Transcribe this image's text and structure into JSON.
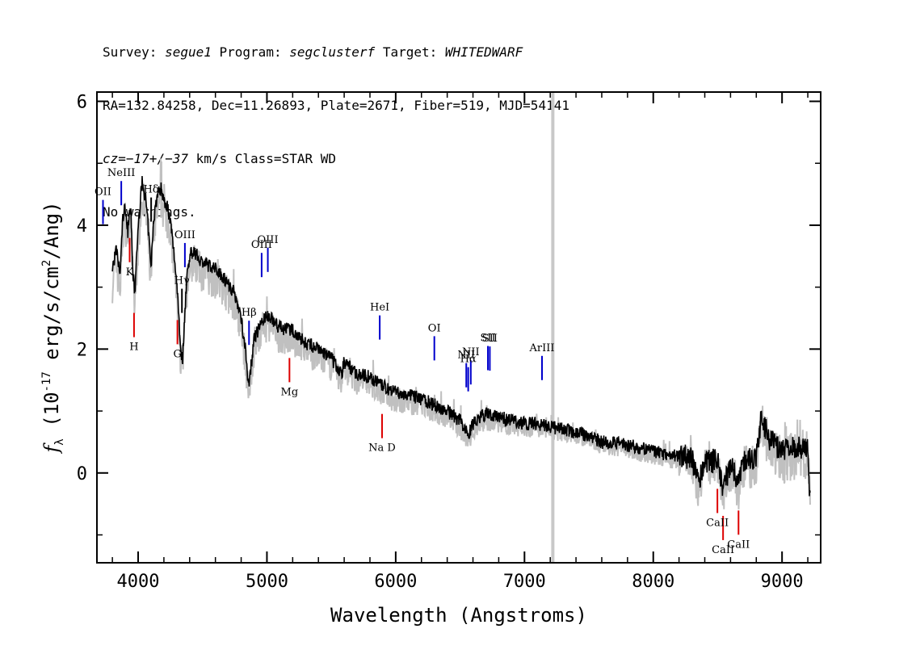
{
  "header": {
    "survey_label": "Survey:",
    "survey_value": "segue1",
    "program_label": "Program:",
    "program_value": "segclusterf",
    "target_label": "Target:",
    "target_value": "WHITEDWARF",
    "line2": "RA=132.84258, Dec=11.26893, Plate=2671, Fiber=519, MJD=54141",
    "cz_label": "cz=",
    "cz_value": "−17+/−37",
    "cz_rest": " km/s Class=STAR WD",
    "line4": "No warnings."
  },
  "chart_data": {
    "type": "line",
    "xlabel": "Wavelength (Angstroms)",
    "ylabel": "fλ (10⁻¹⁷ erg/s/cm²/Ang)",
    "xlim": [
      3680,
      9300
    ],
    "ylim": [
      -1.45,
      6.15
    ],
    "x_ticks": [
      4000,
      5000,
      6000,
      7000,
      8000,
      9000
    ],
    "y_ticks": [
      0,
      2,
      4,
      6
    ],
    "grid": false,
    "colors": {
      "flux": "#000000",
      "error": "#c0c0c0",
      "emission": "#0000cc",
      "absorption": "#dd0000"
    },
    "vertical_band": {
      "x": 7220
    },
    "spectrum": {
      "x": [
        3800,
        3830,
        3860,
        3880,
        3900,
        3920,
        3940,
        3960,
        3975,
        3990,
        4010,
        4030,
        4060,
        4080,
        4100,
        4120,
        4150,
        4180,
        4200,
        4230,
        4260,
        4290,
        4310,
        4330,
        4345,
        4360,
        4380,
        4400,
        4430,
        4460,
        4500,
        4550,
        4600,
        4650,
        4700,
        4750,
        4800,
        4830,
        4850,
        4861,
        4875,
        4900,
        4930,
        4960,
        4990,
        5020,
        5050,
        5100,
        5200,
        5300,
        5400,
        5500,
        5580,
        5600,
        5700,
        5800,
        5900,
        6000,
        6100,
        6200,
        6300,
        6400,
        6500,
        6540,
        6563,
        6590,
        6650,
        6700,
        6800,
        6900,
        7000,
        7100,
        7200,
        7300,
        7400,
        7500,
        7600,
        7700,
        7800,
        7900,
        8000,
        8100,
        8200,
        8300,
        8350,
        8400,
        8500,
        8540,
        8600,
        8662,
        8700,
        8800,
        8840,
        8900,
        9000,
        9100,
        9200,
        9220
      ],
      "y": [
        3.3,
        3.6,
        3.2,
        4.1,
        4.3,
        3.9,
        4.4,
        3.2,
        2.9,
        3.6,
        4.2,
        4.7,
        4.4,
        3.9,
        3.3,
        4.1,
        4.5,
        4.6,
        4.4,
        4.3,
        3.9,
        3.3,
        2.8,
        2.0,
        1.8,
        2.5,
        3.2,
        3.5,
        3.6,
        3.5,
        3.4,
        3.35,
        3.3,
        3.2,
        3.05,
        2.9,
        2.5,
        2.05,
        1.6,
        1.35,
        1.7,
        2.15,
        2.3,
        2.45,
        2.5,
        2.55,
        2.45,
        2.35,
        2.3,
        2.1,
        2.0,
        1.85,
        1.6,
        1.8,
        1.6,
        1.55,
        1.4,
        1.3,
        1.25,
        1.2,
        1.1,
        1.0,
        0.85,
        0.7,
        0.6,
        0.75,
        0.9,
        0.95,
        0.9,
        0.85,
        0.8,
        0.8,
        0.75,
        0.7,
        0.65,
        0.6,
        0.5,
        0.48,
        0.45,
        0.4,
        0.35,
        0.3,
        0.28,
        0.25,
        -0.2,
        0.2,
        0.2,
        -0.25,
        0.15,
        -0.15,
        0.2,
        0.25,
        0.9,
        0.55,
        0.35,
        0.4,
        0.4,
        -0.6
      ]
    },
    "error_envelope": [
      0.35,
      0.3,
      0.22,
      0.18,
      0.12,
      0.15,
      0.25
    ],
    "emission_lines": [
      {
        "label": "OII",
        "x": 3727
      },
      {
        "label": "NeIII",
        "x": 3869
      },
      {
        "label": "OIII",
        "x": 4363
      },
      {
        "label": "Hβ",
        "x": 4861
      },
      {
        "label": "OIII",
        "x": 4959
      },
      {
        "label": "OIII",
        "x": 5007
      },
      {
        "label": "HeI",
        "x": 5876
      },
      {
        "label": "OI",
        "x": 6300
      },
      {
        "label": "NII",
        "x": 6548
      },
      {
        "label": "Hα",
        "x": 6563
      },
      {
        "label": "NII",
        "x": 6583
      },
      {
        "label": "SII",
        "x": 6716
      },
      {
        "label": "SII",
        "x": 6731
      },
      {
        "label": "ArIII",
        "x": 7136
      }
    ],
    "balmer_lines": [
      {
        "label": "Hδ",
        "x": 4101
      },
      {
        "label": "Hγ",
        "x": 4340
      }
    ],
    "absorption_lines": [
      {
        "label": "K",
        "x": 3934
      },
      {
        "label": "H",
        "x": 3968
      },
      {
        "label": "G",
        "x": 4305
      },
      {
        "label": "Mg",
        "x": 5175
      },
      {
        "label": "Na D",
        "x": 5894
      },
      {
        "label": "CaII",
        "x": 8498
      },
      {
        "label": "CaII",
        "x": 8542
      },
      {
        "label": "CaII",
        "x": 8662
      }
    ]
  }
}
